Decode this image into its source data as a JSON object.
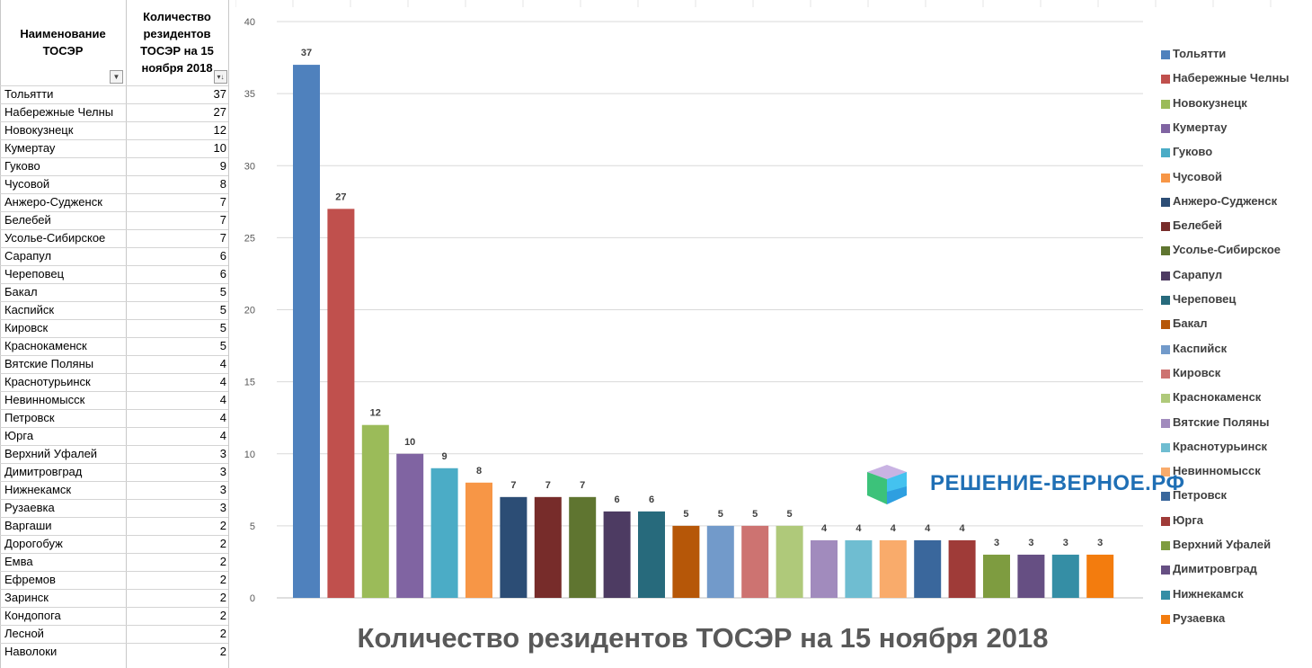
{
  "sheet": {
    "col_a_header": "Наименование ТОСЭР",
    "col_b_header": "Количество резидентов ТОСЭР на 15 ноября 2018",
    "filter_a_icon": "dropdown-arrow-icon",
    "filter_b_icon": "sort-filter-icon",
    "rows": [
      {
        "name": "Тольятти",
        "value": "37"
      },
      {
        "name": "Набережные Челны",
        "value": "27"
      },
      {
        "name": "Новокузнецк",
        "value": "12"
      },
      {
        "name": "Кумертау",
        "value": "10"
      },
      {
        "name": "Гуково",
        "value": "9"
      },
      {
        "name": "Чусовой",
        "value": "8"
      },
      {
        "name": "Анжеро-Судженск",
        "value": "7"
      },
      {
        "name": "Белебей",
        "value": "7"
      },
      {
        "name": "Усолье-Сибирское",
        "value": "7"
      },
      {
        "name": "Сарапул",
        "value": "6"
      },
      {
        "name": "Череповец",
        "value": "6"
      },
      {
        "name": "Бакал",
        "value": "5"
      },
      {
        "name": "Каспийск",
        "value": "5"
      },
      {
        "name": "Кировск",
        "value": "5"
      },
      {
        "name": "Краснокаменск",
        "value": "5"
      },
      {
        "name": "Вятские Поляны",
        "value": "4"
      },
      {
        "name": "Краснотурьинск",
        "value": "4"
      },
      {
        "name": "Невинномысск",
        "value": "4"
      },
      {
        "name": "Петровск",
        "value": "4"
      },
      {
        "name": "Юрга",
        "value": "4"
      },
      {
        "name": "Верхний Уфалей",
        "value": "3"
      },
      {
        "name": "Димитровград",
        "value": "3"
      },
      {
        "name": "Нижнекамск",
        "value": "3"
      },
      {
        "name": "Рузаевка",
        "value": "3"
      },
      {
        "name": "Варгаши",
        "value": "2"
      },
      {
        "name": "Дорогобуж",
        "value": "2"
      },
      {
        "name": "Емва",
        "value": "2"
      },
      {
        "name": "Ефремов",
        "value": "2"
      },
      {
        "name": "Заринск",
        "value": "2"
      },
      {
        "name": "Кондопога",
        "value": "2"
      },
      {
        "name": "Лесной",
        "value": "2"
      },
      {
        "name": "Наволоки",
        "value": "2"
      }
    ]
  },
  "logo": {
    "text": "РЕШЕНИЕ-ВЕРНОЕ.РФ",
    "icon": "cube-logo-icon"
  },
  "chart_data": {
    "type": "bar",
    "title": "Количество резидентов ТОСЭР на 15 ноября 2018",
    "xlabel": "",
    "ylabel": "",
    "ylim": [
      0,
      40
    ],
    "yticks": [
      0,
      5,
      10,
      15,
      20,
      25,
      30,
      35,
      40
    ],
    "grid": true,
    "legend_position": "right",
    "categories": [
      "Тольятти",
      "Набережные Челны",
      "Новокузнецк",
      "Кумертау",
      "Гуково",
      "Чусовой",
      "Анжеро-Судженск",
      "Белебей",
      "Усолье-Сибирское",
      "Сарапул",
      "Череповец",
      "Бакал",
      "Каспийск",
      "Кировск",
      "Краснокаменск",
      "Вятские Поляны",
      "Краснотурьинск",
      "Невинномысск",
      "Петровск",
      "Юрга",
      "Верхний Уфалей",
      "Димитровград",
      "Нижнекамск",
      "Рузаевка"
    ],
    "values": [
      37,
      27,
      12,
      10,
      9,
      8,
      7,
      7,
      7,
      6,
      6,
      5,
      5,
      5,
      5,
      4,
      4,
      4,
      4,
      4,
      3,
      3,
      3,
      3
    ],
    "colors": [
      "#4F81BD",
      "#C0504D",
      "#9BBB59",
      "#8064A2",
      "#4BACC6",
      "#F79646",
      "#2C4D75",
      "#772C2A",
      "#5F7530",
      "#4D3B62",
      "#276A7C",
      "#B65708",
      "#729ACA",
      "#CD7371",
      "#AFC97A",
      "#A18BBD",
      "#6FBDD1",
      "#F9AB6B",
      "#3A679C",
      "#9F3B38",
      "#7E9C40",
      "#664F83",
      "#358EA5",
      "#F37C0E"
    ]
  }
}
